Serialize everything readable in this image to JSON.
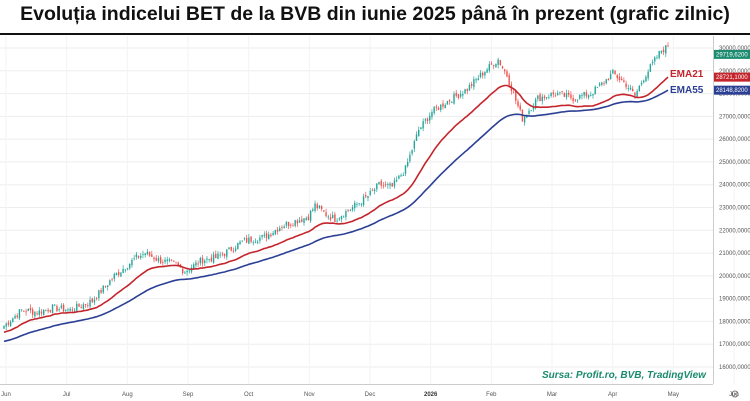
{
  "title": "Evoluția indicelui BET de la BVB din iunie 2025 până în prezent (grafic zilnic)",
  "source": "Sursa: Profit.ro, BVB, TradingView",
  "colors": {
    "up": "#26a69a",
    "down": "#ef5350",
    "ema21": "#c4252c",
    "ema55": "#2b3f94",
    "price_tag": "#1c8b70"
  },
  "chart_data": {
    "type": "candlestick",
    "title": "Evoluția indicelui BET de la BVB din iunie 2025 până în prezent (grafic zilnic)",
    "y_axis": {
      "min": 16000,
      "max": 30000,
      "ticks": [
        "16000,0000",
        "17000,0000",
        "18000,0000",
        "19000,0000",
        "20000,0000",
        "21000,0000",
        "22000,0000",
        "23000,0000",
        "24000,0000",
        "25000,0000",
        "26000,0000",
        "27000,0000",
        "28000,0000",
        "29000,0000",
        "30000,0000"
      ]
    },
    "x_axis": {
      "labels": [
        {
          "label": "Jun",
          "bold": false
        },
        {
          "label": "Jul",
          "bold": false
        },
        {
          "label": "Aug",
          "bold": false
        },
        {
          "label": "Sep",
          "bold": false
        },
        {
          "label": "Oct",
          "bold": false
        },
        {
          "label": "Nov",
          "bold": false
        },
        {
          "label": "Dec",
          "bold": false
        },
        {
          "label": "2026",
          "bold": true
        },
        {
          "label": "Feb",
          "bold": false
        },
        {
          "label": "Mar",
          "bold": false
        },
        {
          "label": "Apr",
          "bold": false
        },
        {
          "label": "May",
          "bold": false
        },
        {
          "label": "Jun",
          "bold": false
        }
      ]
    },
    "price_tags": [
      {
        "name": "price",
        "value": 29719.62,
        "label": "29719,6200",
        "color": "#1c8b70"
      },
      {
        "name": "ema21",
        "value": 28721.1,
        "label": "28721,1000",
        "color": "#c4252c"
      },
      {
        "name": "ema55",
        "value": 28148.82,
        "label": "28148,8200",
        "color": "#2b3f94"
      }
    ],
    "legend": [
      {
        "label": "EMA21",
        "color": "#c4252c"
      },
      {
        "label": "EMA55",
        "color": "#2b3f94"
      }
    ],
    "anchors": [
      [
        0,
        17800
      ],
      [
        8,
        18500
      ],
      [
        15,
        18400
      ],
      [
        22,
        18600
      ],
      [
        30,
        18500
      ],
      [
        40,
        18900
      ],
      [
        50,
        20000
      ],
      [
        60,
        20800
      ],
      [
        64,
        21000
      ],
      [
        70,
        20700
      ],
      [
        78,
        20500
      ],
      [
        82,
        20200
      ],
      [
        90,
        20700
      ],
      [
        96,
        20800
      ],
      [
        100,
        21000
      ],
      [
        108,
        21500
      ],
      [
        112,
        21600
      ],
      [
        118,
        21700
      ],
      [
        126,
        22200
      ],
      [
        132,
        22400
      ],
      [
        138,
        22600
      ],
      [
        141,
        23100
      ],
      [
        146,
        22700
      ],
      [
        150,
        22500
      ],
      [
        158,
        23000
      ],
      [
        165,
        23500
      ],
      [
        170,
        24000
      ],
      [
        176,
        23900
      ],
      [
        182,
        24700
      ],
      [
        188,
        26400
      ],
      [
        194,
        27200
      ],
      [
        200,
        27600
      ],
      [
        210,
        28200
      ],
      [
        218,
        29000
      ],
      [
        224,
        29500
      ],
      [
        228,
        28800
      ],
      [
        232,
        27700
      ],
      [
        235,
        26900
      ],
      [
        242,
        27800
      ],
      [
        250,
        28000
      ],
      [
        258,
        27800
      ],
      [
        266,
        28000
      ],
      [
        272,
        28500
      ],
      [
        276,
        28900
      ],
      [
        282,
        28400
      ],
      [
        286,
        27900
      ],
      [
        290,
        28700
      ],
      [
        298,
        29900
      ],
      [
        302,
        30100
      ]
    ],
    "n_candles": 302,
    "ema21_end": 28721.1,
    "ema55_end": 28148.82
  }
}
